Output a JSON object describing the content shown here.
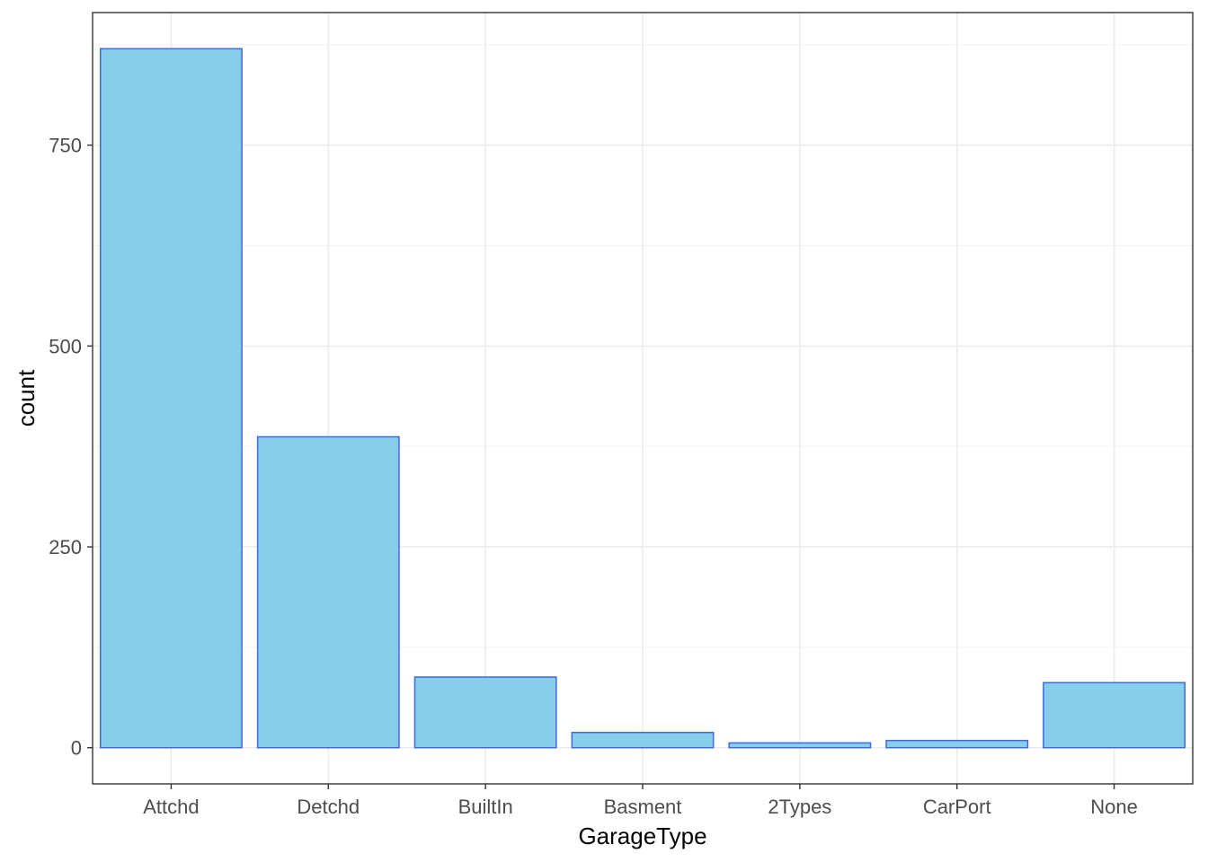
{
  "chart_data": {
    "type": "bar",
    "title": "",
    "xlabel": "GarageType",
    "ylabel": "count",
    "categories": [
      "Attchd",
      "Detchd",
      "BuiltIn",
      "Basment",
      "2Types",
      "CarPort",
      "None"
    ],
    "values": [
      870,
      387,
      88,
      19,
      6,
      9,
      81
    ],
    "ylim": [
      -45,
      915
    ],
    "yticks": [
      0,
      250,
      500,
      750
    ],
    "ytick_labels": [
      "0",
      "250",
      "500",
      "750"
    ],
    "grid": true,
    "legend": "none",
    "colors": {
      "bar_fill": "#87CEEB",
      "bar_stroke": "#4169E1",
      "grid_major": "#EBEBEB",
      "grid_minor": "#F3F3F3",
      "panel_border": "#333333",
      "tick_text": "#4D4D4D",
      "axis_title_text": "#000000"
    }
  }
}
